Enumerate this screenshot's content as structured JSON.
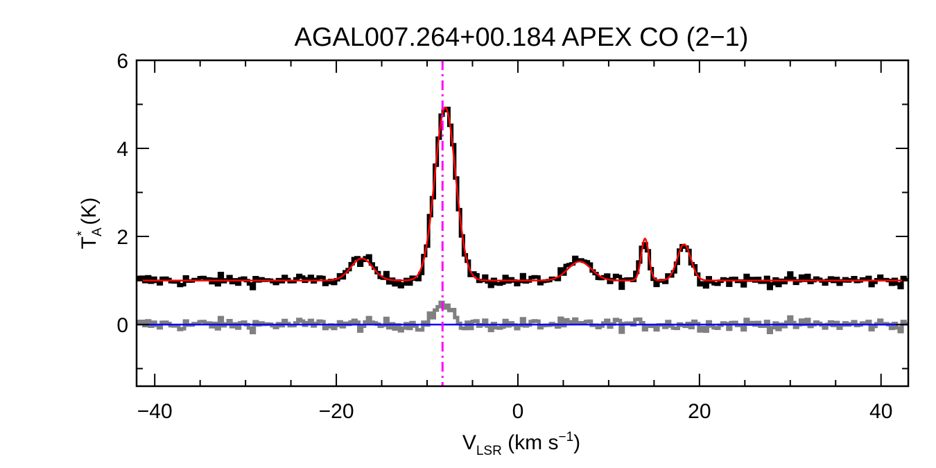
{
  "chart_data": {
    "type": "line",
    "title": "AGAL007.264+00.184  APEX CO (2−1)",
    "xlabel": {
      "main": "V",
      "sub": "LSR",
      "unit_pre": " (km s",
      "sup": "−1",
      "unit_post": ")"
    },
    "ylabel": {
      "main": "T",
      "sub": "A",
      "sup": "*",
      "unit": " (K)"
    },
    "xlim": [
      -42,
      43
    ],
    "ylim": [
      -1.4,
      6.0
    ],
    "xticks": [
      -40,
      -20,
      0,
      20,
      40
    ],
    "xtick_labels": [
      "−40",
      "−20",
      "0",
      "20",
      "40"
    ],
    "yticks": [
      0,
      2,
      4,
      6
    ],
    "ytick_labels": [
      "0",
      "2",
      "4",
      "6"
    ],
    "reference_velocity": -8.3,
    "baseline": 0,
    "fit_offset": 1.0,
    "residual_offset": 0.0,
    "fit_components": [
      {
        "center": -17.2,
        "amplitude": 0.5,
        "sigma": 1.2
      },
      {
        "center": -8.0,
        "amplitude": 3.93,
        "sigma": 1.15
      },
      {
        "center": 6.8,
        "amplitude": 0.43,
        "sigma": 1.3
      },
      {
        "center": 14.0,
        "amplitude": 0.95,
        "sigma": 0.42
      },
      {
        "center": 18.3,
        "amplitude": 0.82,
        "sigma": 0.75
      }
    ],
    "colors": {
      "spectrum": "#000000",
      "fit": "#ff0000",
      "residual": "#808080",
      "baseline": "#0000ff",
      "reference": "#ff00ff"
    }
  }
}
